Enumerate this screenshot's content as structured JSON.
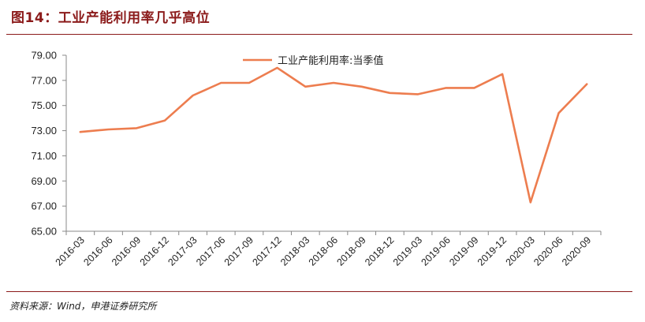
{
  "figure": {
    "title": "图14：工业产能利用率几乎高位",
    "source": "资料来源：Wind，申港证券研究所"
  },
  "colors": {
    "title": "#8b1a1a",
    "rule": "#8b1a1a",
    "line": "#ed7d4f",
    "axis": "#888888"
  },
  "chart_data": {
    "type": "line",
    "categories": [
      "2016-03",
      "2016-06",
      "2016-09",
      "2016-12",
      "2017-03",
      "2017-06",
      "2017-09",
      "2017-12",
      "2018-03",
      "2018-06",
      "2018-09",
      "2018-12",
      "2019-03",
      "2019-06",
      "2019-09",
      "2019-12",
      "2020-03",
      "2020-06",
      "2020-09"
    ],
    "series": [
      {
        "name": "工业产能利用率:当季值",
        "values": [
          72.9,
          73.1,
          73.2,
          73.8,
          75.8,
          76.8,
          76.8,
          78.0,
          76.5,
          76.8,
          76.5,
          76.0,
          75.9,
          76.4,
          76.4,
          77.5,
          67.3,
          74.4,
          76.7
        ]
      }
    ],
    "yticks": [
      "79.00",
      "77.00",
      "75.00",
      "73.00",
      "71.00",
      "69.00",
      "67.00",
      "65.00"
    ],
    "ylim": [
      65,
      79
    ],
    "grid": false,
    "legend_position": "top-center"
  }
}
